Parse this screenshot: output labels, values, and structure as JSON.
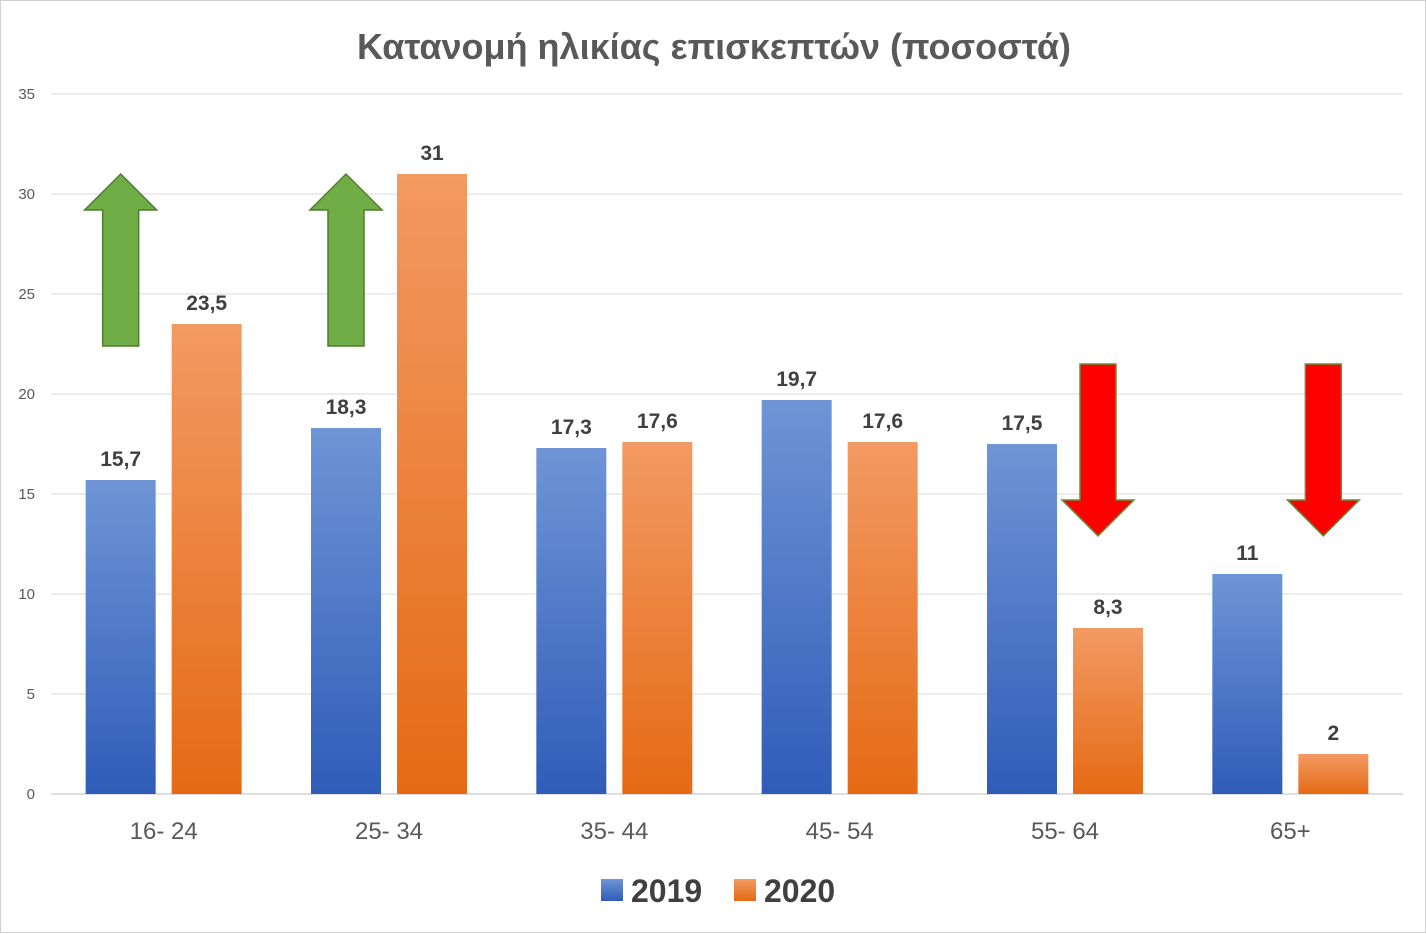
{
  "chart_data": {
    "type": "bar",
    "title": "Κατανομή ηλικίας επισκεπτών (ποσοστά)",
    "categories": [
      "16- 24",
      "25- 34",
      "35- 44",
      "45- 54",
      "55- 64",
      "65+"
    ],
    "series": [
      {
        "name": "2019",
        "values": [
          15.7,
          18.3,
          17.3,
          19.7,
          17.5,
          11
        ],
        "labels": [
          "15,7",
          "18,3",
          "17,3",
          "19,7",
          "17,5",
          "11"
        ],
        "color_top": "#6f95d6",
        "color_bottom": "#2f5cb8"
      },
      {
        "name": "2020",
        "values": [
          23.5,
          31,
          17.6,
          17.6,
          8.3,
          2
        ],
        "labels": [
          "23,5",
          "31",
          "17,6",
          "17,6",
          "8,3",
          "2"
        ],
        "color_top": "#f29a63",
        "color_bottom": "#e56a14"
      }
    ],
    "yticks": [
      "0",
      "5",
      "10",
      "15",
      "20",
      "25",
      "30",
      "35"
    ],
    "ylim": [
      0,
      35
    ],
    "grid": true,
    "legend": "bottom",
    "annotations": [
      {
        "type": "up-arrow",
        "category": "16- 24",
        "color": "#70ad47",
        "from": 22.4,
        "to": 31
      },
      {
        "type": "up-arrow",
        "category": "25- 34",
        "color": "#70ad47",
        "from": 22.4,
        "to": 31
      },
      {
        "type": "down-arrow",
        "category": "55- 64",
        "color": "#ff0000",
        "from": 21.5,
        "to": 12.9
      },
      {
        "type": "down-arrow",
        "category": "65+",
        "color": "#ff0000",
        "from": 21.5,
        "to": 12.9
      }
    ]
  }
}
